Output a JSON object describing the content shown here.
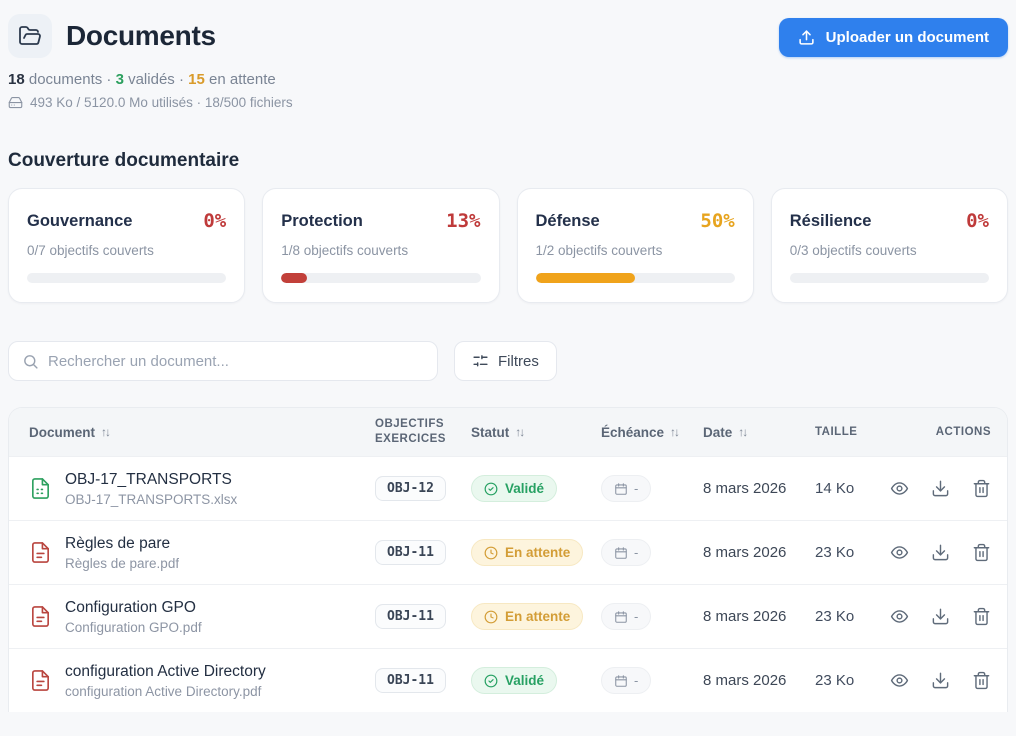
{
  "page": {
    "title": "Documents",
    "upload_button": "Uploader un document",
    "stats": {
      "total": "18",
      "total_label": "documents",
      "valid": "3",
      "valid_label": "validés",
      "pending": "15",
      "pending_label": "en attente",
      "sep": "·"
    },
    "storage": "493 Ko / 5120.0 Mo utilisés · 18/500 fichiers"
  },
  "colors": {
    "accent_blue": "#2f80ed",
    "red": "#c2403a",
    "amber": "#f0a31b",
    "green": "#2da05f"
  },
  "coverage": {
    "heading": "Couverture documentaire",
    "cards": [
      {
        "name": "Gouvernance",
        "percent": "0%",
        "fill_pct": 0,
        "subtitle": "0/7 objectifs couverts"
      },
      {
        "name": "Protection",
        "percent": "13%",
        "fill_pct": 13,
        "subtitle": "1/8 objectifs couverts"
      },
      {
        "name": "Défense",
        "percent": "50%",
        "fill_pct": 50,
        "subtitle": "1/2 objectifs couverts"
      },
      {
        "name": "Résilience",
        "percent": "0%",
        "fill_pct": 0,
        "subtitle": "0/3 objectifs couverts"
      }
    ]
  },
  "toolbar": {
    "search_placeholder": "Rechercher un document...",
    "filters_label": "Filtres"
  },
  "table": {
    "sort_icon": "↑↓",
    "columns": {
      "document": "Document",
      "objectifs": "OBJECTIFS EXERCICES",
      "statut": "Statut",
      "echeance": "Échéance",
      "date": "Date",
      "taille": "TAILLE",
      "actions": "ACTIONS"
    },
    "rows": [
      {
        "title": "OBJ-17_TRANSPORTS",
        "filename": "OBJ-17_TRANSPORTS.xlsx",
        "file_type": "xlsx",
        "objectif": "OBJ-12",
        "status": "Validé",
        "echeance": "-",
        "date": "8 mars 2026",
        "size": "14 Ko"
      },
      {
        "title": "Règles de pare",
        "filename": "Règles de pare.pdf",
        "file_type": "pdf",
        "objectif": "OBJ-11",
        "status": "En attente",
        "echeance": "-",
        "date": "8 mars 2026",
        "size": "23 Ko"
      },
      {
        "title": "Configuration GPO",
        "filename": "Configuration GPO.pdf",
        "file_type": "pdf",
        "objectif": "OBJ-11",
        "status": "En attente",
        "echeance": "-",
        "date": "8 mars 2026",
        "size": "23 Ko"
      },
      {
        "title": "configuration Active Directory",
        "filename": "configuration Active Directory.pdf",
        "file_type": "pdf",
        "objectif": "OBJ-11",
        "status": "Validé",
        "echeance": "-",
        "date": "8 mars 2026",
        "size": "23 Ko"
      }
    ]
  }
}
